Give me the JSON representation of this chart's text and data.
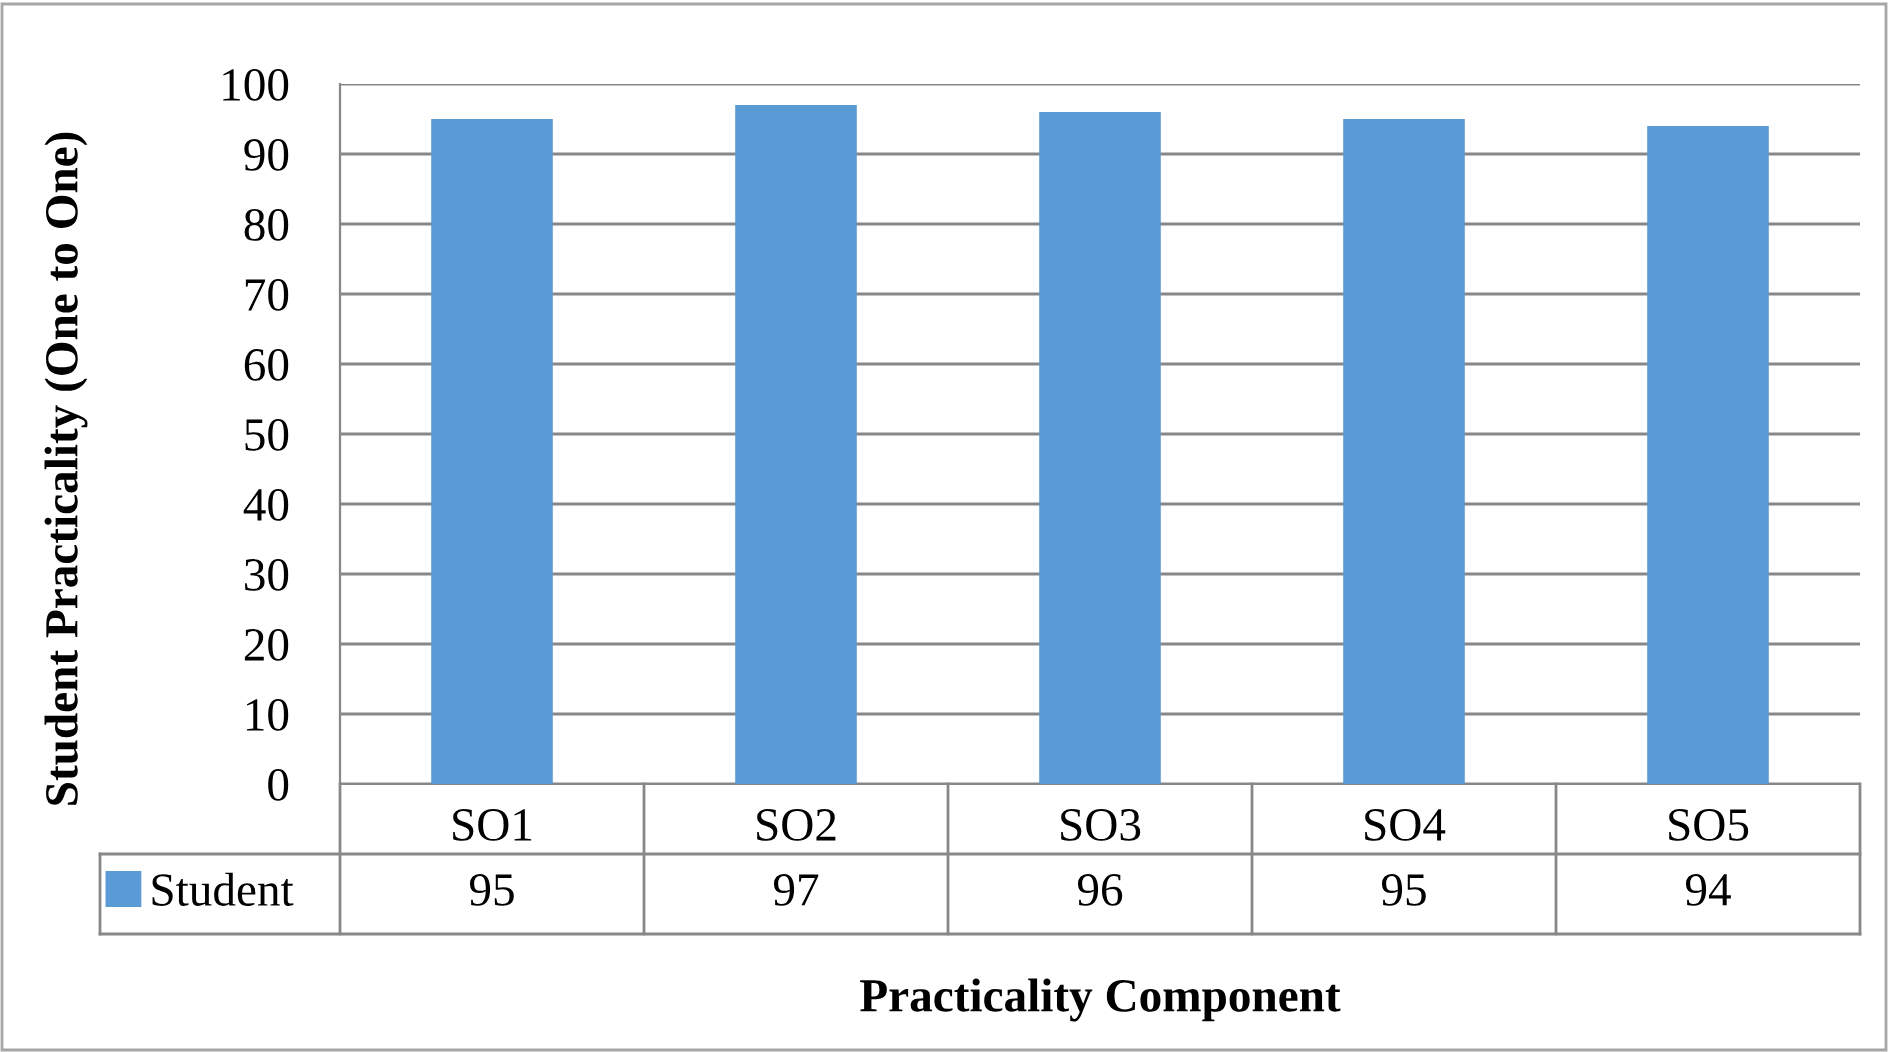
{
  "chart_data": {
    "type": "bar",
    "xlabel": "Practicality Component",
    "ylabel": "Student Practicality (One to One)",
    "categories": [
      "SO1",
      "SO2",
      "SO3",
      "SO4",
      "SO5"
    ],
    "series": [
      {
        "name": "Student",
        "color": "#5b9bd5",
        "values": [
          95,
          97,
          96,
          95,
          94
        ]
      }
    ],
    "ylim": [
      0,
      100
    ],
    "yticks": [
      0,
      10,
      20,
      30,
      40,
      50,
      60,
      70,
      80,
      90,
      100
    ],
    "grid": "y",
    "data_labels": true,
    "legend": "bottom left"
  }
}
